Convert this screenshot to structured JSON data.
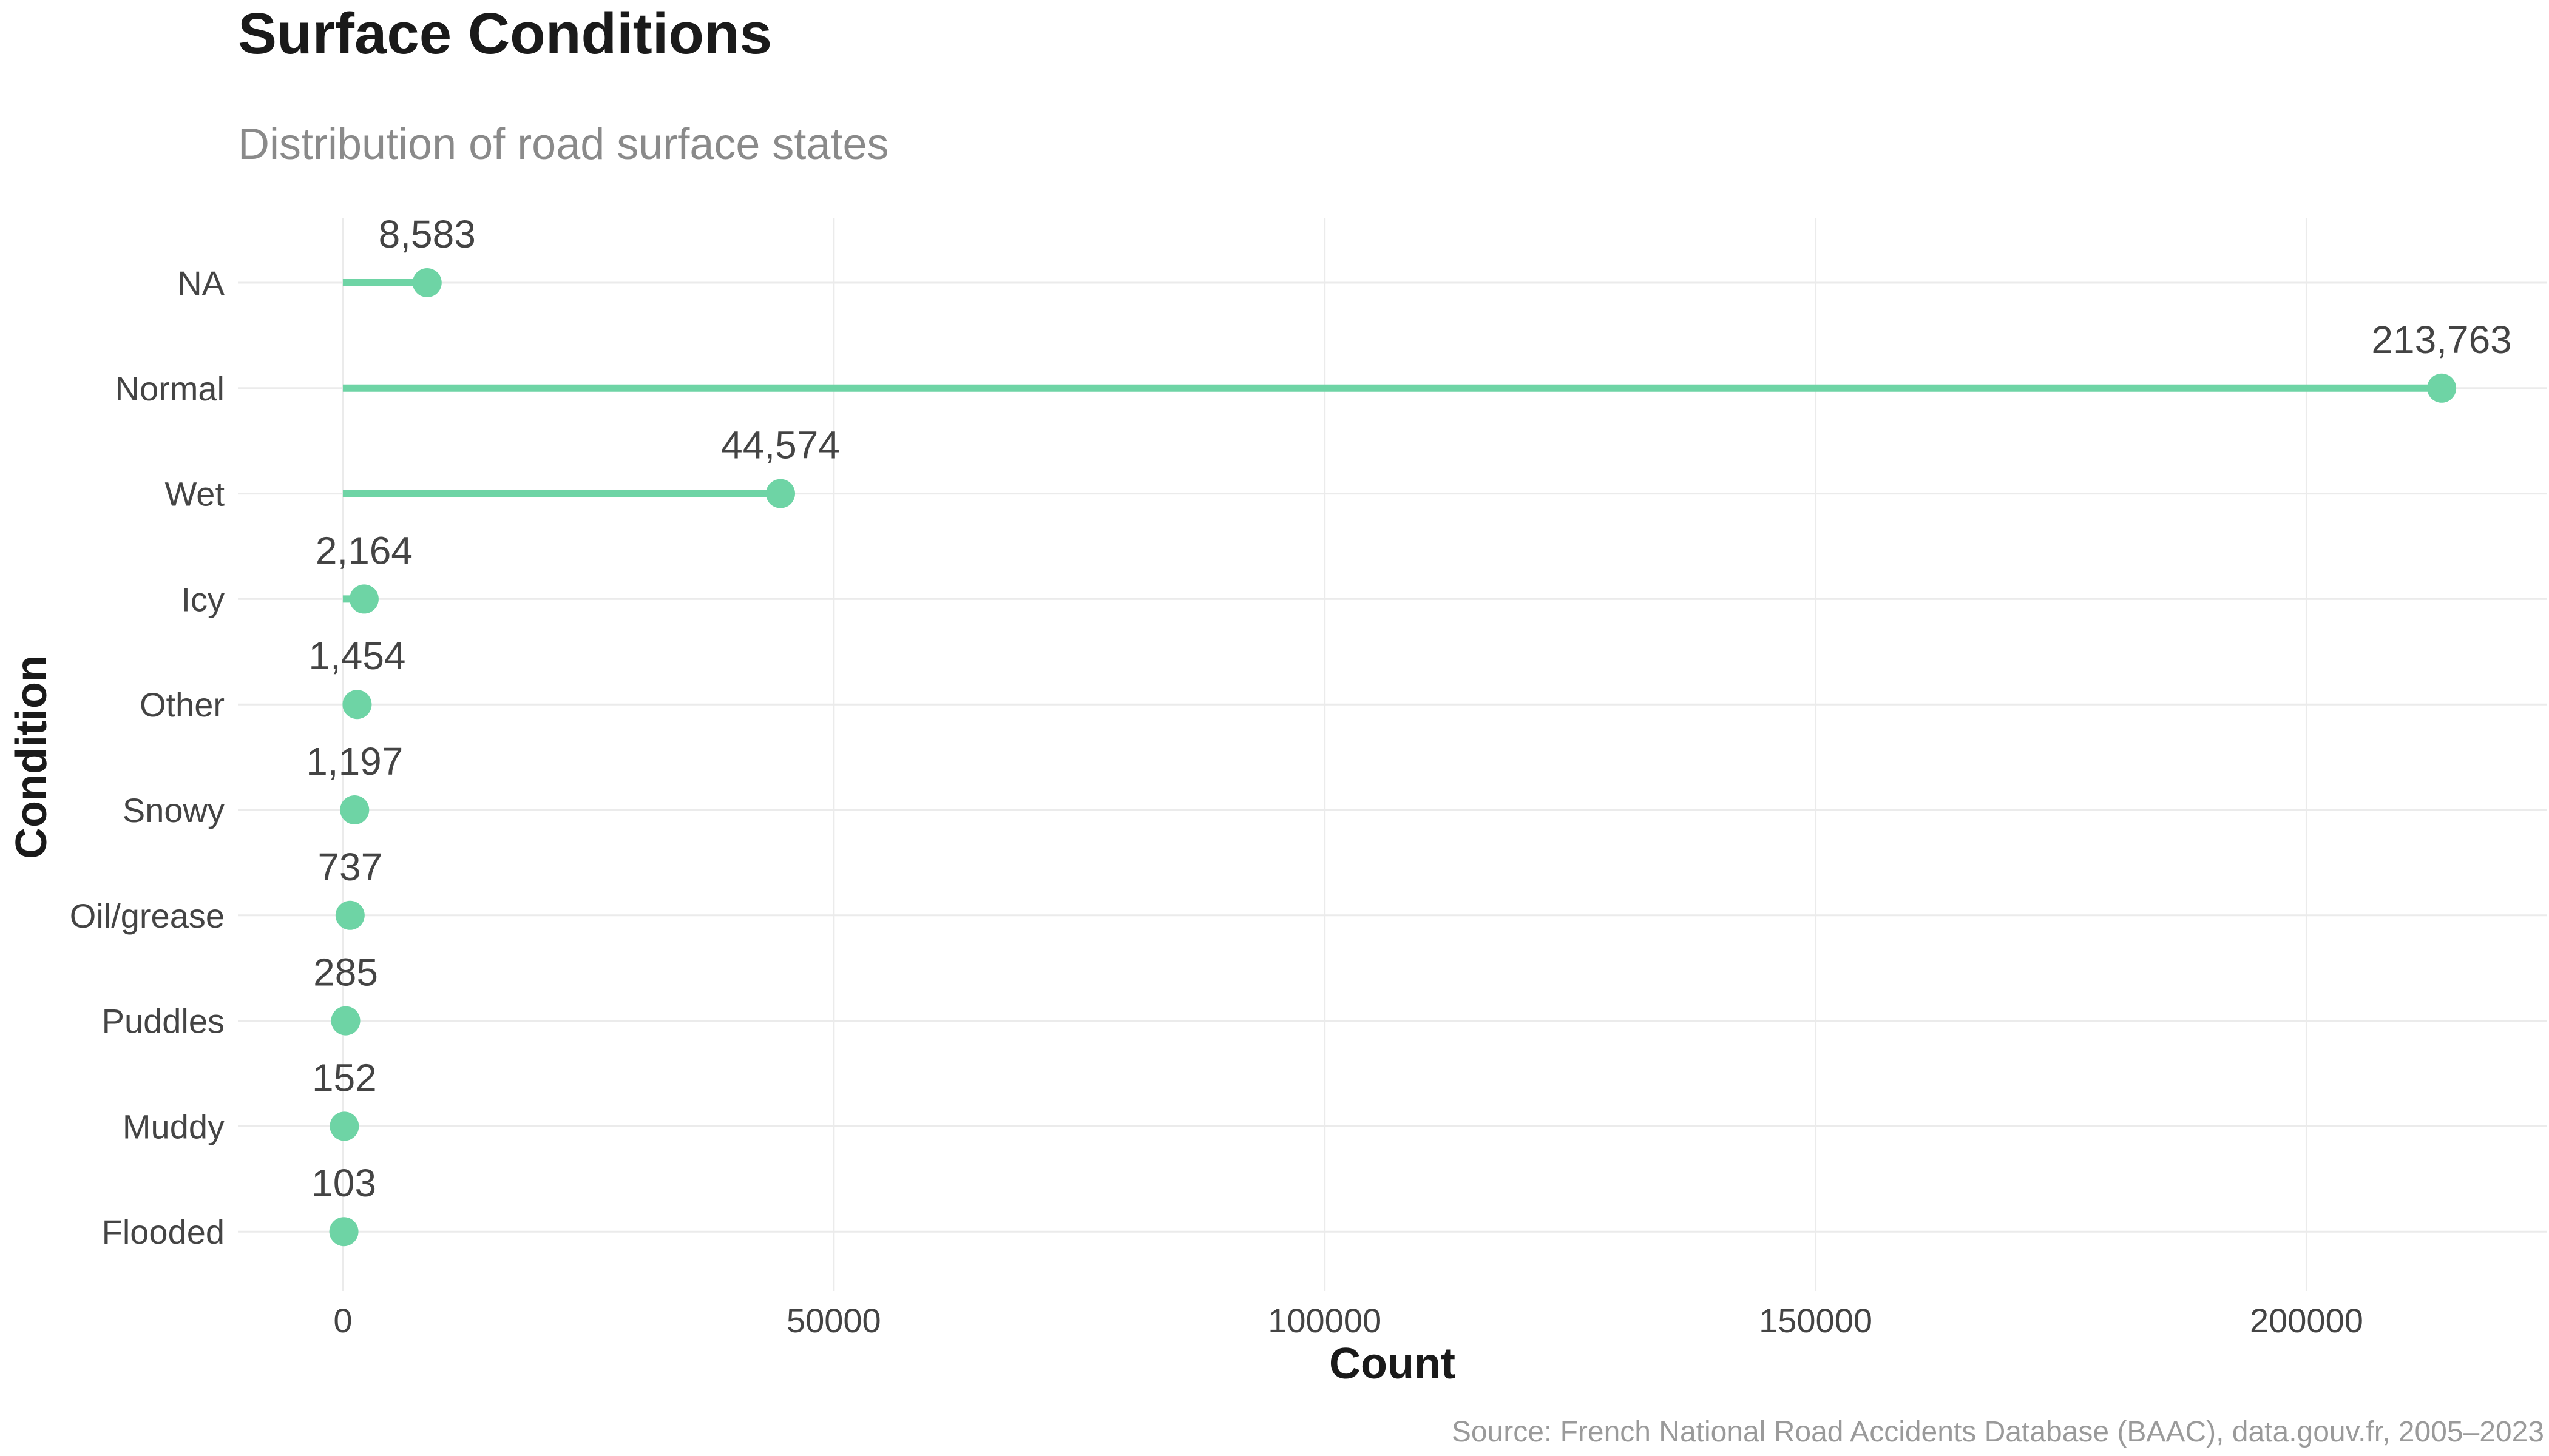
{
  "chart_data": {
    "type": "lollipop",
    "title": "Surface Conditions",
    "subtitle": "Distribution of road surface states",
    "xlabel": "Count",
    "ylabel": "Condition",
    "caption": "Source: French National Road Accidents Database (BAAC), data.gouv.fr, 2005–2023",
    "categories": [
      "NA",
      "Normal",
      "Wet",
      "Icy",
      "Other",
      "Snowy",
      "Oil/grease",
      "Puddles",
      "Muddy",
      "Flooded"
    ],
    "values": [
      8583,
      213763,
      44574,
      2164,
      1454,
      1197,
      737,
      285,
      152,
      103
    ],
    "value_labels": [
      "8,583",
      "213,763",
      "44,574",
      "2,164",
      "1,454",
      "1,197",
      "737",
      "285",
      "152",
      "103"
    ],
    "xlim": [
      -10688,
      224451
    ],
    "xticks": [
      0,
      50000,
      100000,
      150000,
      200000
    ],
    "xtick_labels": [
      "0",
      "50000",
      "100000",
      "150000",
      "200000"
    ],
    "grid": true,
    "color": "#6ed4a5"
  }
}
